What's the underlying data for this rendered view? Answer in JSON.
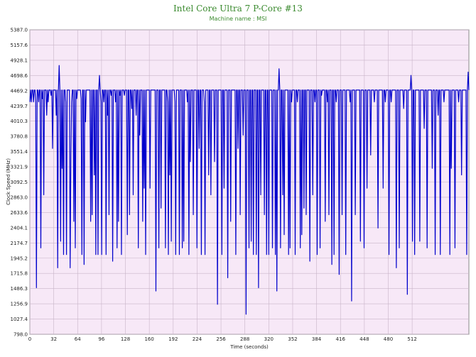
{
  "chart_data": {
    "type": "line",
    "title": "Intel Core Ultra 7 P-Core #13",
    "subtitle": "Machine name : MSI",
    "xlabel": "Time (seconds)",
    "ylabel": "Clock Speed (MHz)",
    "xlim": [
      0,
      588
    ],
    "ylim": [
      798.0,
      5387.0
    ],
    "x_ticks": [
      0,
      32,
      64,
      96,
      128,
      160,
      192,
      224,
      256,
      288,
      320,
      352,
      384,
      416,
      448,
      480,
      512
    ],
    "y_ticks": [
      "798.0",
      "1027.4",
      "1256.9",
      "1486.3",
      "1715.8",
      "1945.2",
      "2174.7",
      "2404.1",
      "2633.6",
      "2863.0",
      "3092.5",
      "3321.9",
      "3551.4",
      "3780.8",
      "4010.3",
      "4239.7",
      "4469.2",
      "4698.6",
      "4928.1",
      "5157.6",
      "5387.0"
    ],
    "grid": true,
    "line_color": "#0000cc",
    "plot_bg": "#f7e8f7",
    "series": [
      {
        "values": [
          4300,
          4480,
          4300,
          4480,
          4480,
          4300,
          4480,
          4480,
          4300,
          1500,
          4480,
          4480,
          4300,
          4480,
          4480,
          2100,
          4480,
          4350,
          4480,
          2900,
          4480,
          4480,
          4480,
          4100,
          4480,
          4300,
          4480,
          4480,
          4480,
          4400,
          4480,
          3600,
          4480,
          4480,
          4480,
          4480,
          4100,
          4480,
          1800,
          4480,
          4850,
          4480,
          2200,
          4480,
          3300,
          4480,
          2000,
          4480,
          4480,
          4300,
          2000,
          4480,
          4480,
          4480,
          4480,
          1800,
          3500,
          4300,
          4480,
          4480,
          2500,
          4480,
          2100,
          4480,
          4350,
          4480,
          4480,
          4480,
          4480,
          4480,
          4350,
          2000,
          4480,
          4480,
          1850,
          4480,
          4000,
          4480,
          4480,
          4480,
          4480,
          4480,
          4480,
          2500,
          4480,
          2600,
          4480,
          4480,
          3200,
          4480,
          2000,
          4480,
          4480,
          2000,
          4480,
          4700,
          4480,
          4300,
          2000,
          4480,
          4480,
          4300,
          4480,
          4480,
          2000,
          4480,
          4100,
          4480,
          2600,
          4480,
          4480,
          4400,
          4480,
          1900,
          4480,
          4480,
          4480,
          4300,
          4480,
          2100,
          4480,
          2500,
          4480,
          4400,
          4480,
          2000,
          4480,
          4480,
          4480,
          4400,
          4480,
          4480,
          4480,
          2300,
          4480,
          4480,
          2600,
          4480,
          4480,
          4200,
          4480,
          2900,
          4480,
          4480,
          4480,
          4100,
          4480,
          4480,
          2100,
          4480,
          3800,
          4480,
          4480,
          4480,
          2500,
          4480,
          3000,
          4480,
          2000,
          4480,
          4480,
          4480,
          4480,
          4480,
          3000,
          4480,
          4480,
          4480,
          4480,
          4480,
          4480,
          4480,
          1450,
          4480,
          4480,
          4480,
          2100,
          4480,
          4480,
          2700,
          4480,
          4480,
          4480,
          4480,
          4480,
          2100,
          4480,
          4480,
          4300,
          2000,
          4480,
          3200,
          4480,
          2200,
          4480,
          4480,
          4480,
          4480,
          4300,
          2000,
          4480,
          4480,
          4480,
          4480,
          2000,
          4480,
          4480,
          4480,
          2100,
          4480,
          2200,
          4480,
          4480,
          4480,
          4480,
          4300,
          4480,
          2000,
          4480,
          3400,
          4480,
          4480,
          4480,
          2600,
          4480,
          4480,
          4480,
          4480,
          2100,
          4480,
          4480,
          3600,
          4480,
          4480,
          2000,
          4480,
          4480,
          4480,
          4300,
          2000,
          4480,
          4480,
          4480,
          4480,
          3200,
          4480,
          4480,
          2900,
          4480,
          4480,
          4480,
          4480,
          3400,
          4480,
          4480,
          4480,
          1250,
          4480,
          4480,
          4480,
          4480,
          4480,
          2000,
          4480,
          4480,
          3000,
          4480,
          4480,
          4480,
          4480,
          1650,
          4480,
          4480,
          4480,
          2500,
          4480,
          4480,
          4480,
          4480,
          4480,
          4480,
          2000,
          4480,
          4480,
          3600,
          4480,
          4480,
          2600,
          4480,
          4480,
          4480,
          3800,
          4480,
          4480,
          4480,
          1100,
          4480,
          4480,
          4480,
          2100,
          4480,
          4480,
          2200,
          4480,
          4480,
          2000,
          4480,
          4480,
          4480,
          2000,
          4480,
          4480,
          1500,
          4480,
          4480,
          2900,
          4480,
          4480,
          4480,
          4480,
          2600,
          4480,
          4480,
          2000,
          4480,
          4480,
          2000,
          4480,
          4480,
          4480,
          4480,
          2100,
          4480,
          4480,
          4480,
          2000,
          4480,
          1450,
          4480,
          4480,
          4800,
          4480,
          2100,
          4480,
          4480,
          2900,
          4480,
          2300,
          4480,
          4480,
          4480,
          4480,
          4480,
          2000,
          4480,
          2100,
          4480,
          4300,
          4480,
          4480,
          4480,
          4480,
          2000,
          4480,
          4480,
          4300,
          4480,
          4480,
          4480,
          2100,
          4480,
          2300,
          4480,
          4480,
          2700,
          4480,
          4480,
          2600,
          4480,
          4480,
          4480,
          4480,
          1900,
          4480,
          4480,
          4480,
          2900,
          4480,
          4480,
          4300,
          4480,
          4480,
          2000,
          4480,
          4480,
          4480,
          2100,
          4480,
          4400,
          4480,
          4480,
          4480,
          4480,
          2500,
          4480,
          4480,
          4300,
          4480,
          2600,
          4480,
          4480,
          4480,
          1850,
          4480,
          4480,
          2000,
          4480,
          4480,
          4300,
          4480,
          4480,
          4480,
          1700,
          4480,
          4480,
          4480,
          2600,
          4480,
          4480,
          4480,
          4480,
          2000,
          4480,
          4480,
          4480,
          4480,
          4480,
          4300,
          4480,
          1300,
          4480,
          4480,
          4480,
          4480,
          2600,
          4480,
          4480,
          4480,
          4480,
          4480,
          4480,
          2200,
          4480,
          4480,
          4480,
          4480,
          2100,
          4480,
          4480,
          4480,
          3000,
          4480,
          4480,
          4480,
          4480,
          3500,
          4480,
          4480,
          4480,
          4480,
          4300,
          4480,
          4480,
          4480,
          4480,
          2400,
          4480,
          4480,
          4480,
          4480,
          4480,
          4480,
          3000,
          4480,
          4480,
          4300,
          4480,
          4480,
          4480,
          4480,
          2000,
          4480,
          4480,
          4300,
          4480,
          4480,
          4480,
          4480,
          4480,
          4480,
          1800,
          4480,
          4480,
          4480,
          2100,
          4480,
          4480,
          4480,
          4480,
          4480,
          4200,
          4480,
          4480,
          4480,
          4480,
          1400,
          4480,
          4480,
          4480,
          4480,
          4700,
          4480,
          2200,
          4480,
          4480,
          2000,
          4480,
          4480,
          4480,
          4480,
          4480,
          4480,
          2200,
          4480,
          4480,
          4480,
          4480,
          4480,
          3900,
          4480,
          4480,
          4480,
          2100,
          4480,
          4480,
          4480,
          4480,
          4480,
          4480,
          3300,
          4480,
          4480,
          4480,
          2000,
          4480,
          4480,
          4480,
          4100,
          4480,
          4480,
          2000,
          4480,
          4480,
          4480,
          4480,
          4300,
          4480,
          4480,
          4480,
          4480,
          4480,
          4480,
          4480,
          2000,
          4480,
          3300,
          4480,
          4480,
          4480,
          4480,
          2100,
          4480,
          4480,
          4480,
          4480,
          4300,
          4480,
          4480,
          4480,
          3200,
          4480,
          4480,
          4480,
          4480,
          4480,
          4480,
          2000,
          4480,
          4750,
          4480
        ]
      }
    ]
  }
}
